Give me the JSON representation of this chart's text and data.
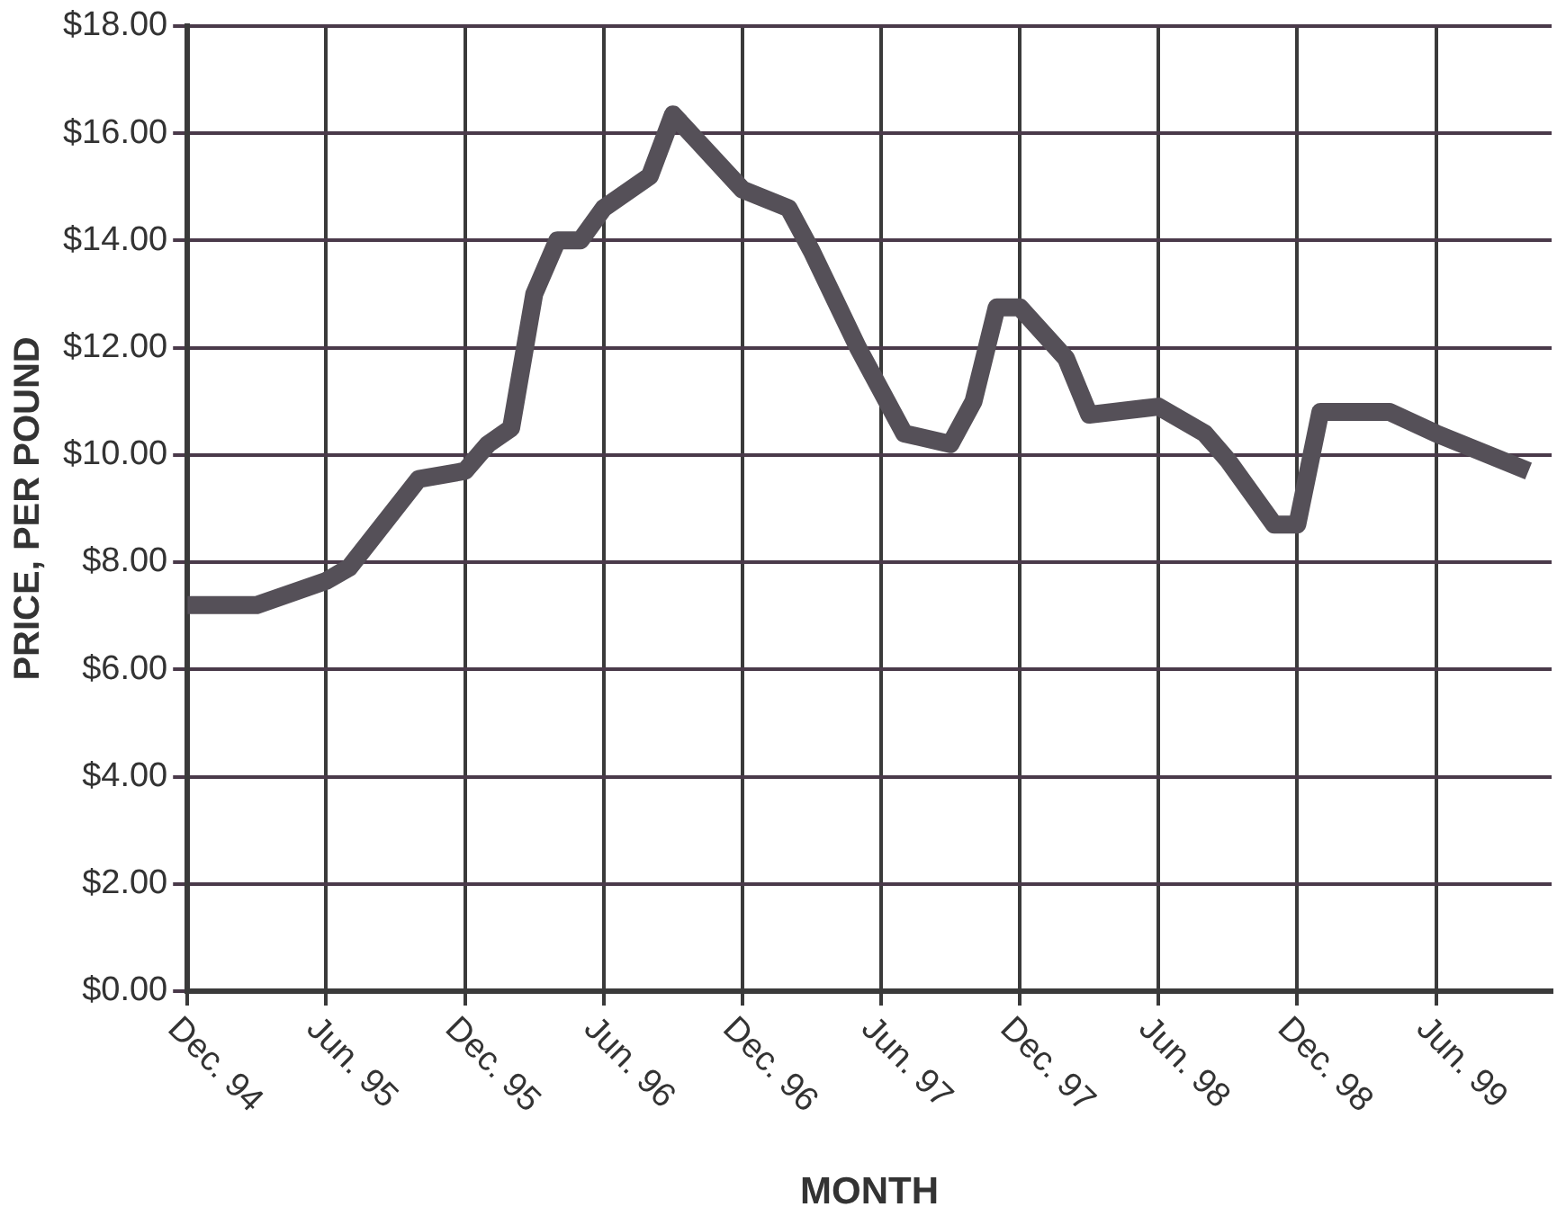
{
  "chart_data": {
    "type": "line",
    "xlabel": "MONTH",
    "ylabel": "PRICE, PER POUND",
    "x": [
      "1994-12",
      "1995-03",
      "1995-06",
      "1995-07",
      "1995-10",
      "1995-12",
      "1996-01",
      "1996-02",
      "1996-03",
      "1996-04",
      "1996-05",
      "1996-06",
      "1996-08",
      "1996-09",
      "1996-12",
      "1997-02",
      "1997-03",
      "1997-04",
      "1997-05",
      "1997-07",
      "1997-09",
      "1997-10",
      "1997-11",
      "1997-12",
      "1998-02",
      "1998-03",
      "1998-06",
      "1998-08",
      "1998-09",
      "1998-11",
      "1998-12",
      "1999-01",
      "1999-04",
      "1999-06",
      "1999-10"
    ],
    "series": [
      {
        "color": "#555058",
        "values": [
          7.2,
          7.2,
          7.65,
          7.9,
          9.55,
          9.7,
          10.2,
          10.5,
          13.0,
          14.0,
          14.0,
          14.6,
          15.2,
          16.35,
          14.95,
          14.6,
          13.8,
          12.9,
          12.0,
          10.4,
          10.2,
          11.0,
          12.75,
          12.75,
          11.8,
          10.75,
          10.9,
          10.4,
          9.9,
          8.7,
          8.7,
          10.8,
          10.8,
          10.4,
          9.7
        ]
      }
    ],
    "xlim": [
      "1994-12",
      "1999-11"
    ],
    "xticks": [
      {
        "value": "1994-12",
        "label": "Dec. 94"
      },
      {
        "value": "1995-06",
        "label": "Jun. 95"
      },
      {
        "value": "1995-12",
        "label": "Dec. 95"
      },
      {
        "value": "1996-06",
        "label": "Jun. 96"
      },
      {
        "value": "1996-12",
        "label": "Dec. 96"
      },
      {
        "value": "1997-06",
        "label": "Jun. 97"
      },
      {
        "value": "1997-12",
        "label": "Dec. 97"
      },
      {
        "value": "1998-06",
        "label": "Jun. 98"
      },
      {
        "value": "1998-12",
        "label": "Dec. 98"
      },
      {
        "value": "1999-06",
        "label": "Jun. 99"
      }
    ],
    "ylim": [
      0,
      18
    ],
    "yticks": [
      {
        "value": 0,
        "label": "$0.00"
      },
      {
        "value": 2,
        "label": "$2.00"
      },
      {
        "value": 4,
        "label": "$4.00"
      },
      {
        "value": 6,
        "label": "$6.00"
      },
      {
        "value": 8,
        "label": "$8.00"
      },
      {
        "value": 10,
        "label": "$10.00"
      },
      {
        "value": 12,
        "label": "$12.00"
      },
      {
        "value": 14,
        "label": "$14.00"
      },
      {
        "value": 16,
        "label": "$16.00"
      },
      {
        "value": 18,
        "label": "$18.00"
      }
    ],
    "grid": true,
    "legend": false,
    "marker": "none",
    "line_style": "solid"
  }
}
